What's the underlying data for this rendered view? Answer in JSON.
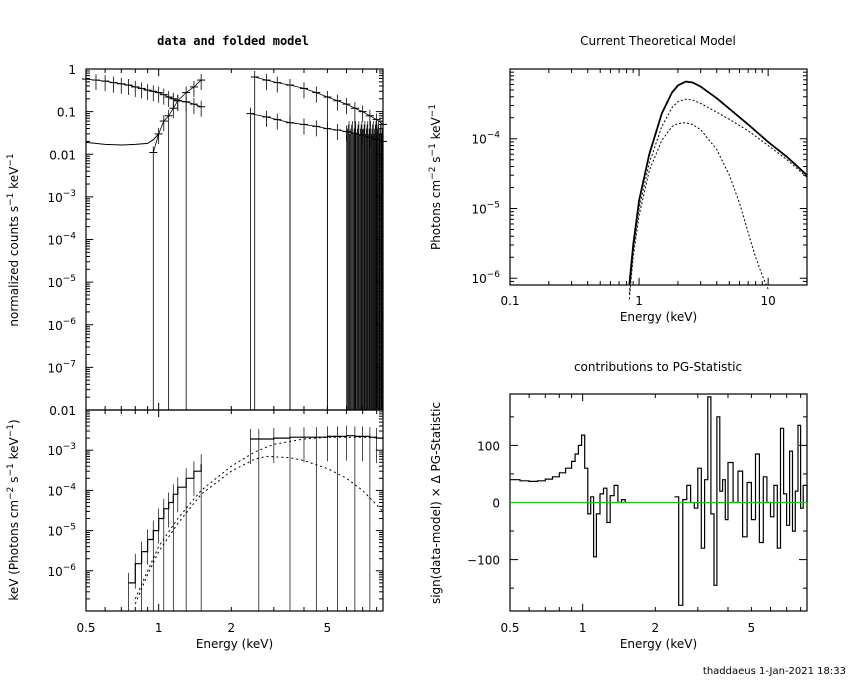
{
  "footer": "thaddaeus   1-Jan-2021  18:33",
  "chart_data": [
    {
      "id": "data",
      "type": "scatter",
      "title": "data and folded model",
      "xlabel": "",
      "ylabel": "normalized counts s^-1 keV^-1",
      "xscale": "log",
      "yscale": "log",
      "xlim": [
        0.5,
        8.5
      ],
      "ylim": [
        1e-08,
        1
      ],
      "yticks": [
        "1",
        "0.1",
        "0.01",
        "10^-3",
        "10^-4",
        "10^-5",
        "10^-6",
        "10^-7"
      ],
      "series": [
        {
          "x": [
            0.5,
            0.55,
            0.6,
            0.65,
            0.7,
            0.75,
            0.8,
            0.85,
            0.9,
            0.95,
            1.0,
            1.05,
            1.1,
            1.15,
            1.2,
            1.3,
            1.4,
            1.5
          ],
          "y": [
            0.58,
            0.55,
            0.52,
            0.48,
            0.45,
            0.42,
            0.38,
            0.35,
            0.32,
            0.3,
            0.28,
            0.25,
            0.22,
            0.2,
            0.18,
            0.17,
            0.15,
            0.13
          ]
        },
        {
          "x": [
            0.95,
            1.0,
            1.05,
            1.1,
            1.15,
            1.2,
            1.3,
            1.4,
            1.5
          ],
          "y": [
            0.011,
            0.03,
            0.06,
            0.08,
            0.12,
            0.18,
            0.28,
            0.38,
            0.55
          ]
        },
        {
          "x": [
            2.5,
            2.8,
            3.1,
            3.5,
            4.0,
            4.5,
            5.0,
            5.5,
            6.0,
            6.5,
            7.0,
            7.5,
            8.0,
            8.5
          ],
          "y": [
            0.65,
            0.55,
            0.48,
            0.42,
            0.35,
            0.28,
            0.22,
            0.18,
            0.15,
            0.12,
            0.1,
            0.08,
            0.065,
            0.05
          ]
        },
        {
          "x": [
            2.4,
            2.8,
            3.1,
            3.5,
            4.0,
            4.5,
            5.0,
            5.5,
            6.0,
            6.5,
            7.0,
            7.5,
            8.0,
            8.5
          ],
          "y": [
            0.09,
            0.075,
            0.065,
            0.055,
            0.05,
            0.045,
            0.04,
            0.037,
            0.034,
            0.031,
            0.028,
            0.025,
            0.022,
            0.02
          ]
        }
      ],
      "model": {
        "x": [
          0.5,
          0.6,
          0.7,
          0.8,
          0.9,
          0.95,
          1.0
        ],
        "y": [
          0.019,
          0.017,
          0.0165,
          0.017,
          0.018,
          0.022,
          0.03
        ]
      }
    },
    {
      "id": "ufspec",
      "type": "line",
      "xlabel": "Energy (keV)",
      "ylabel": "keV (Photons cm^-2 s^-1 keV^-1)",
      "xscale": "log",
      "yscale": "log",
      "xlim": [
        0.5,
        8.5
      ],
      "ylim": [
        1e-07,
        0.01
      ],
      "xticks": [
        "0.5",
        "1",
        "2",
        "5"
      ],
      "yticks": [
        "0.01",
        "10^-3",
        "10^-4",
        "10^-5",
        "10^-6"
      ],
      "data": {
        "x": [
          0.75,
          0.8,
          0.85,
          0.9,
          0.95,
          1.0,
          1.05,
          1.1,
          1.15,
          1.2,
          1.3,
          1.4,
          1.5,
          2.4,
          2.6,
          3.0,
          3.5,
          4.0,
          4.5,
          5.0,
          5.5,
          6.0,
          6.5,
          7.0,
          7.5,
          8.0,
          8.5
        ],
        "y": [
          5e-07,
          1.5e-06,
          3e-06,
          6e-06,
          1e-05,
          2e-05,
          3.5e-05,
          5e-05,
          8e-05,
          0.00012,
          0.0002,
          0.0003,
          0.00045,
          0.0019,
          0.0019,
          0.002,
          0.0021,
          0.0021,
          0.0021,
          0.0022,
          0.0022,
          0.0023,
          0.0022,
          0.0022,
          0.0021,
          0.002,
          0.0021
        ]
      },
      "model_total": {
        "x": [
          0.8,
          0.9,
          1.0,
          1.2,
          1.5,
          2.0,
          2.5,
          3.0,
          4.0,
          5.0,
          6.0,
          7.0,
          8.5
        ],
        "y": [
          2e-07,
          1e-06,
          4e-06,
          2e-05,
          0.0001,
          0.0004,
          0.0009,
          0.0014,
          0.0019,
          0.0021,
          0.0021,
          0.0021,
          0.002
        ]
      },
      "model_comp": {
        "x": [
          0.8,
          0.9,
          1.0,
          1.2,
          1.5,
          2.0,
          2.5,
          2.8,
          3.5,
          4.0,
          5.0,
          6.0,
          7.0,
          8.5
        ],
        "y": [
          1.5e-07,
          8e-07,
          3e-06,
          1.5e-05,
          8e-05,
          0.0003,
          0.0006,
          0.0007,
          0.00065,
          0.00055,
          0.00035,
          0.0002,
          0.0001,
          3e-05
        ]
      }
    },
    {
      "id": "model",
      "type": "line",
      "title": "Current Theoretical Model",
      "xlabel": "Energy (keV)",
      "ylabel": "Photons cm^-2 s^-1 keV^-1",
      "xscale": "log",
      "yscale": "log",
      "xlim": [
        0.1,
        20
      ],
      "ylim": [
        8e-07,
        0.001
      ],
      "xticks": [
        "0.1",
        "1",
        "10"
      ],
      "yticks": [
        "10^-4",
        "10^-5",
        "10^-6"
      ],
      "series": [
        {
          "x": [
            0.84,
            0.9,
            1.0,
            1.2,
            1.5,
            1.8,
            2.0,
            2.3,
            2.6,
            3.0,
            4.0,
            5.0,
            7.0,
            10,
            14,
            20
          ],
          "y": [
            8e-07,
            3e-06,
            1.3e-05,
            6e-05,
            0.00023,
            0.00046,
            0.00058,
            0.00066,
            0.00064,
            0.00056,
            0.00038,
            0.00027,
            0.00016,
            9e-05,
            5.5e-05,
            3e-05
          ]
        },
        {
          "x": [
            0.84,
            0.9,
            1.0,
            1.2,
            1.5,
            1.8,
            2.0,
            2.3,
            2.6,
            3.0,
            4.0,
            5.0,
            7.0,
            10,
            14,
            20
          ],
          "y": [
            6e-07,
            2.5e-06,
            1e-05,
            4.5e-05,
            0.00015,
            0.00028,
            0.00034,
            0.00037,
            0.00036,
            0.00032,
            0.00024,
            0.00019,
            0.00013,
            8e-05,
            5e-05,
            2.8e-05
          ]
        },
        {
          "x": [
            0.84,
            0.9,
            1.0,
            1.2,
            1.5,
            1.8,
            2.0,
            2.3,
            2.6,
            3.0,
            4.0,
            5.0,
            6.0,
            7.0,
            8.0,
            9.0,
            10
          ],
          "y": [
            5e-07,
            2e-06,
            8e-06,
            3.5e-05,
            9.5e-05,
            0.00015,
            0.000165,
            0.00017,
            0.00016,
            0.000135,
            7e-05,
            3e-05,
            1.2e-05,
            4.5e-06,
            2e-06,
            1.1e-06,
            7e-07
          ]
        }
      ]
    },
    {
      "id": "delchi",
      "type": "line",
      "title": "contributions to PG-Statistic",
      "xlabel": "Energy (keV)",
      "ylabel": "sign(data-model) × Δ PG-Statistic",
      "xscale": "log",
      "xlim": [
        0.5,
        8.5
      ],
      "ylim": [
        -190,
        190
      ],
      "xticks": [
        "0.5",
        "1",
        "2",
        "5"
      ],
      "yticks": [
        "100",
        "0",
        "-100"
      ],
      "zero_line_color": "#22bb22",
      "steps": {
        "x": [
          0.5,
          0.55,
          0.6,
          0.65,
          0.7,
          0.75,
          0.8,
          0.85,
          0.9,
          0.93,
          0.96,
          0.99,
          1.02,
          1.05,
          1.08,
          1.11,
          1.14,
          1.18,
          1.22,
          1.26,
          1.3,
          1.35,
          1.4,
          1.45,
          1.5
        ],
        "y": [
          40,
          38,
          37,
          38,
          41,
          45,
          52,
          60,
          72,
          85,
          100,
          118,
          60,
          -20,
          10,
          -95,
          -20,
          15,
          25,
          -35,
          12,
          30,
          0,
          5,
          0
        ]
      },
      "steps2": {
        "x": [
          2.4,
          2.5,
          2.6,
          2.7,
          2.8,
          2.9,
          3.0,
          3.1,
          3.2,
          3.3,
          3.4,
          3.5,
          3.6,
          3.7,
          3.8,
          3.9,
          4.0,
          4.2,
          4.4,
          4.6,
          4.8,
          5.0,
          5.2,
          5.4,
          5.6,
          5.8,
          6.0,
          6.2,
          6.4,
          6.6,
          6.8,
          7.0,
          7.2,
          7.4,
          7.6,
          7.8,
          8.0,
          8.2,
          8.5
        ],
        "y": [
          10,
          -180,
          5,
          30,
          0,
          -10,
          60,
          -80,
          40,
          185,
          -20,
          -145,
          150,
          20,
          40,
          -30,
          70,
          0,
          55,
          -60,
          35,
          -30,
          85,
          -70,
          45,
          0,
          -25,
          30,
          -80,
          130,
          15,
          -40,
          90,
          -50,
          20,
          135,
          -10,
          30,
          0
        ]
      }
    }
  ]
}
